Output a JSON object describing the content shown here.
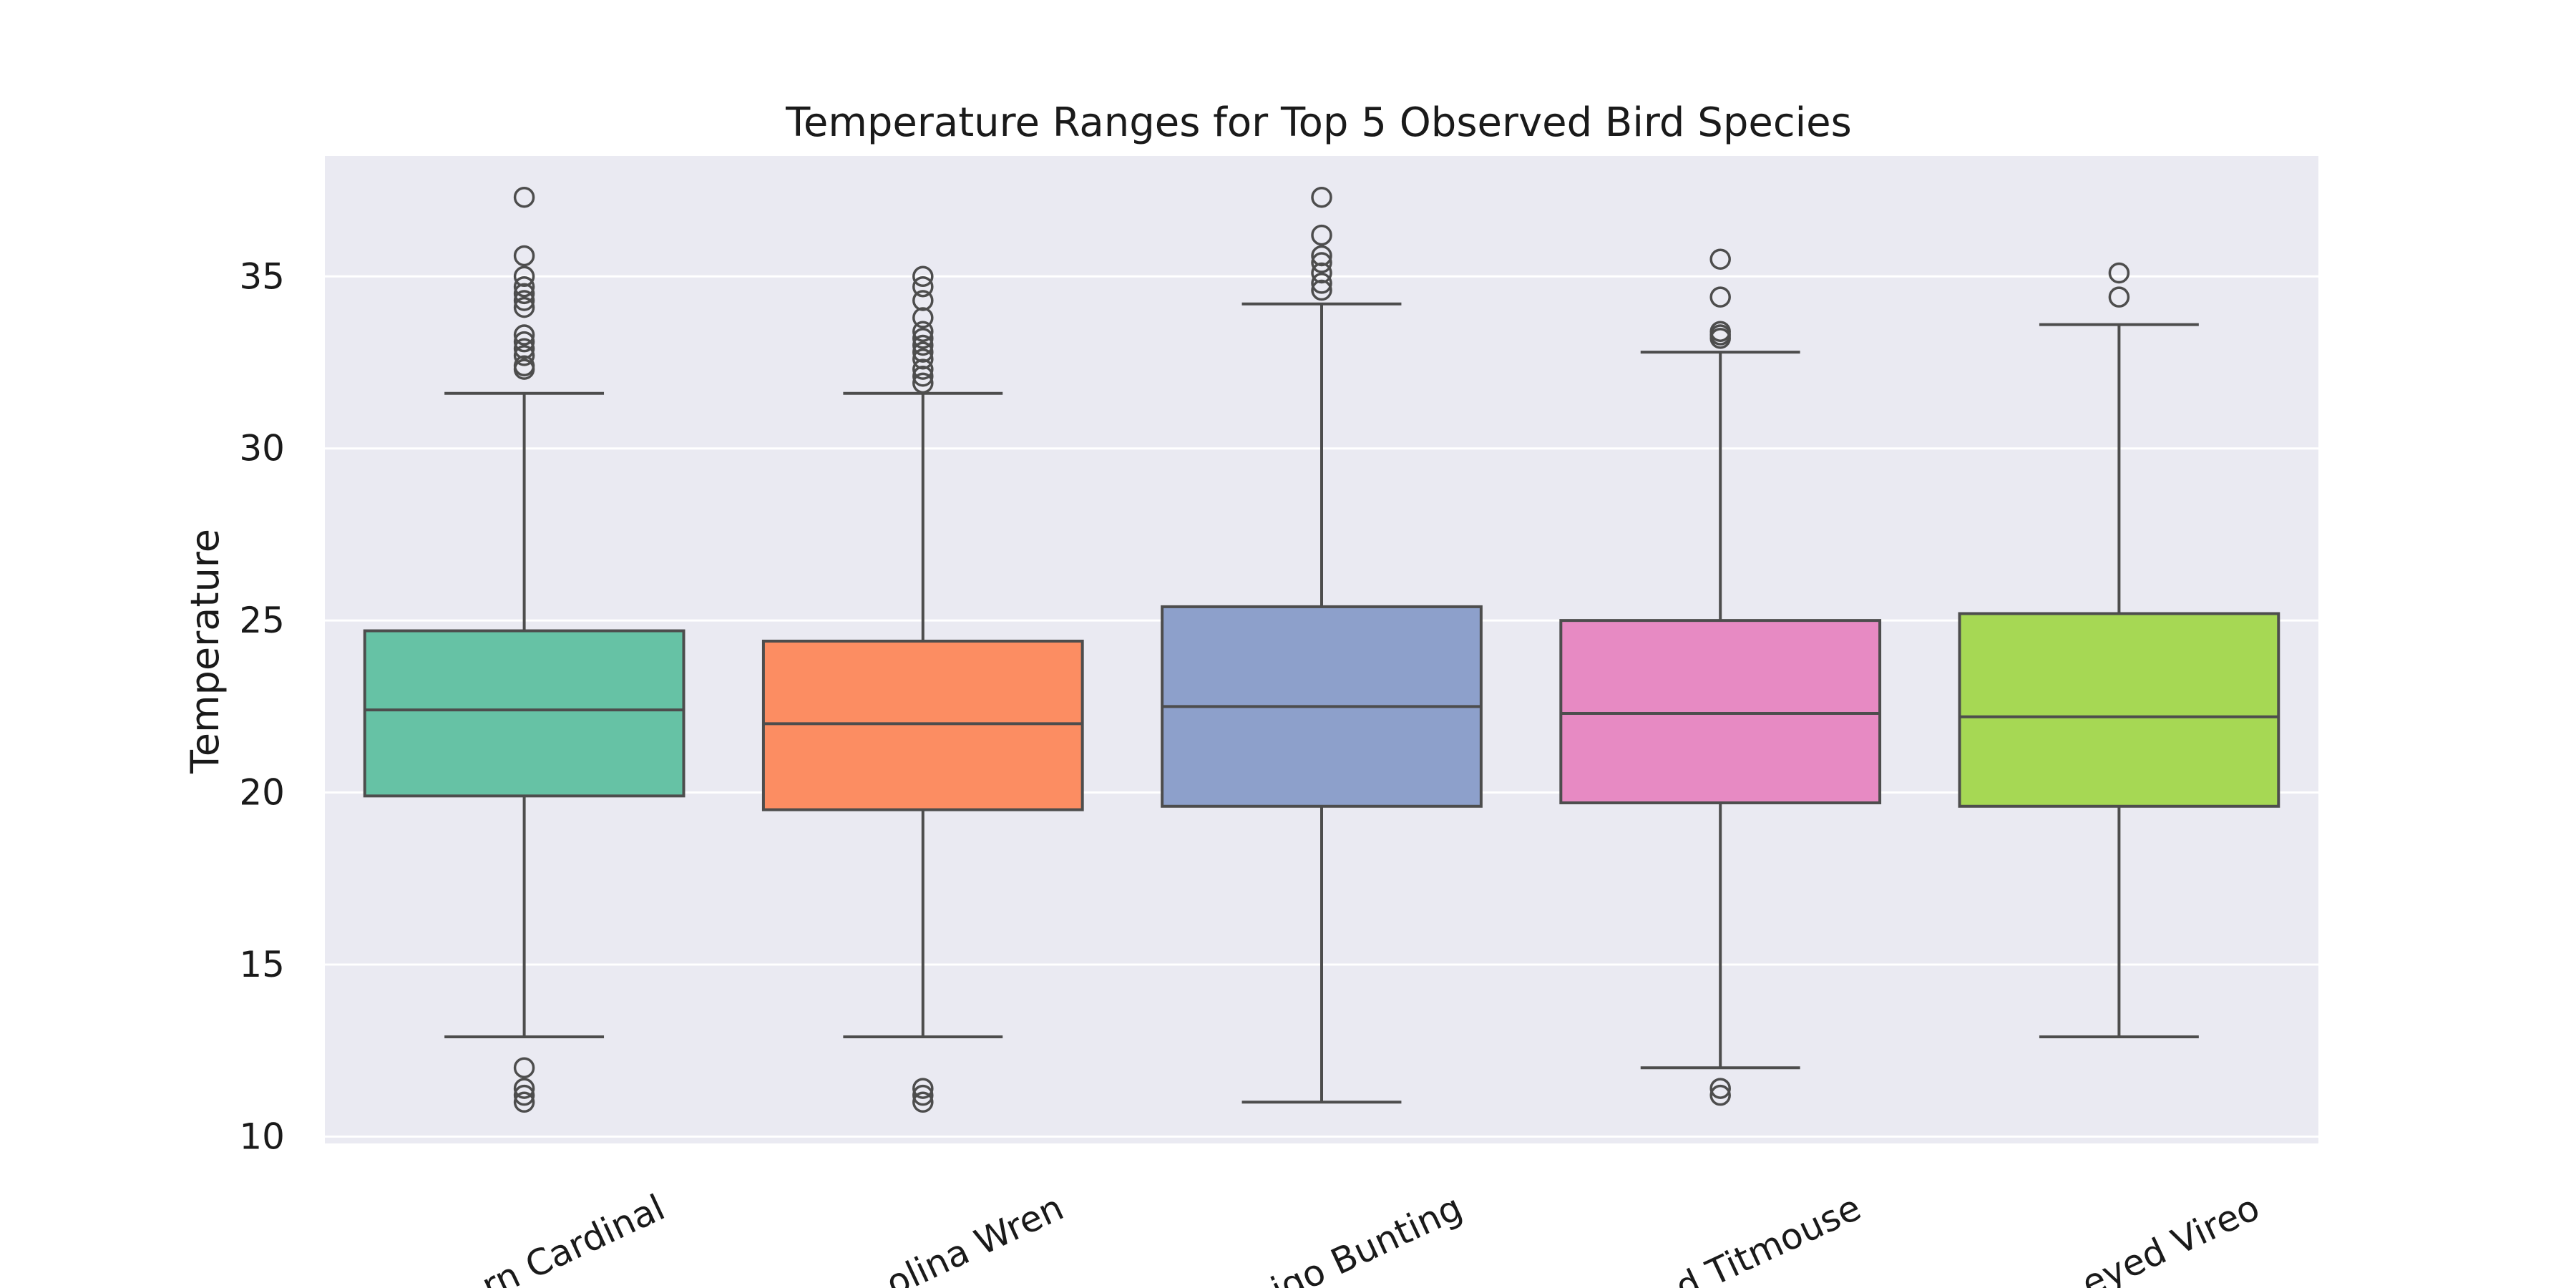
{
  "chart_data": {
    "type": "box",
    "title": "Temperature Ranges for Top 5 Observed Bird Species",
    "xlabel": "",
    "ylabel": "Temperature",
    "ylim": [
      9.8,
      38.5
    ],
    "yticks": [
      10,
      15,
      20,
      25,
      30,
      35
    ],
    "grid": true,
    "background": "#eaeaf2",
    "categories": [
      "Northern Cardinal",
      "Carolina Wren",
      "Indigo Bunting",
      "Tufted Titmouse",
      "Red-eyed Vireo"
    ],
    "visible_tick_labels": [
      "rn Cardinal",
      "olina Wren",
      "igo Bunting",
      "d Titmouse",
      "eyed Vireo"
    ],
    "boxes": [
      {
        "category": "Northern Cardinal",
        "color": "#66c2a5",
        "whisker_low": 12.9,
        "q1": 19.9,
        "median": 22.4,
        "q3": 24.7,
        "whisker_high": 31.6,
        "outliers": [
          37.3,
          35.6,
          35.0,
          34.7,
          34.5,
          34.3,
          34.1,
          33.3,
          33.1,
          32.9,
          32.7,
          32.4,
          32.3,
          12.0,
          11.4,
          11.2,
          11.0
        ]
      },
      {
        "category": "Carolina Wren",
        "color": "#fc8d62",
        "whisker_low": 12.9,
        "q1": 19.5,
        "median": 22.0,
        "q3": 24.4,
        "whisker_high": 31.6,
        "outliers": [
          35.0,
          34.7,
          34.3,
          33.8,
          33.4,
          33.2,
          33.0,
          32.8,
          32.6,
          32.3,
          32.1,
          31.9,
          11.4,
          11.2,
          11.0
        ]
      },
      {
        "category": "Indigo Bunting",
        "color": "#8da0cb",
        "whisker_low": 11.0,
        "q1": 19.6,
        "median": 22.5,
        "q3": 25.4,
        "whisker_high": 34.2,
        "outliers": [
          37.3,
          36.2,
          35.6,
          35.4,
          35.1,
          34.8,
          34.6
        ]
      },
      {
        "category": "Tufted Titmouse",
        "color": "#e78ac3",
        "whisker_low": 12.0,
        "q1": 19.7,
        "median": 22.3,
        "q3": 25.0,
        "whisker_high": 32.8,
        "outliers": [
          35.5,
          34.4,
          33.4,
          33.3,
          33.2,
          11.4,
          11.2
        ]
      },
      {
        "category": "Red-eyed Vireo",
        "color": "#a6d854",
        "whisker_low": 12.9,
        "q1": 19.6,
        "median": 22.2,
        "q3": 25.2,
        "whisker_high": 33.6,
        "outliers": [
          35.1,
          34.4
        ]
      }
    ]
  }
}
